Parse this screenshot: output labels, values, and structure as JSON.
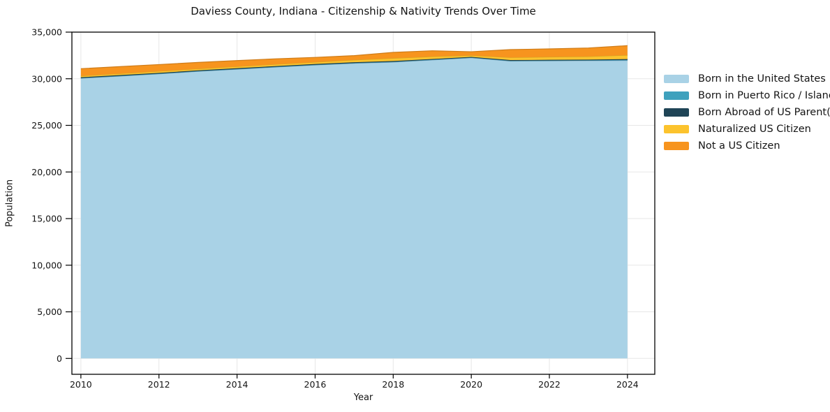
{
  "chart_data": {
    "type": "area",
    "stacked": true,
    "title": "Daviess County, Indiana - Citizenship & Nativity Trends Over Time",
    "xlabel": "Year",
    "ylabel": "Population",
    "grid": true,
    "legend_position": "right",
    "x": [
      2010,
      2011,
      2012,
      2013,
      2014,
      2015,
      2016,
      2017,
      2018,
      2019,
      2020,
      2021,
      2022,
      2023,
      2024
    ],
    "series": [
      {
        "name": "Born in the United States",
        "color": "#a9d2e6",
        "values": [
          30050,
          30280,
          30520,
          30790,
          31020,
          31250,
          31470,
          31650,
          31780,
          32010,
          32250,
          31890,
          31920,
          31940,
          31960
        ]
      },
      {
        "name": "Born in Puerto Rico / Islands",
        "color": "#3fa1bd",
        "values": [
          30,
          30,
          30,
          30,
          30,
          30,
          30,
          40,
          40,
          40,
          30,
          40,
          40,
          40,
          60
        ]
      },
      {
        "name": "Born Abroad of US Parent(s)",
        "color": "#1f4456",
        "values": [
          80,
          80,
          80,
          80,
          80,
          80,
          80,
          80,
          80,
          70,
          60,
          70,
          70,
          70,
          90
        ]
      },
      {
        "name": "Naturalized US Citizen",
        "color": "#fcc32d",
        "values": [
          150,
          160,
          170,
          170,
          180,
          190,
          200,
          250,
          300,
          260,
          160,
          280,
          310,
          340,
          420
        ]
      },
      {
        "name": "Not a US Citizen",
        "color": "#f7941e",
        "values": [
          770,
          750,
          720,
          680,
          640,
          590,
          510,
          460,
          630,
          620,
          400,
          850,
          860,
          910,
          1020
        ]
      }
    ],
    "xticks": [
      2010,
      2012,
      2014,
      2016,
      2018,
      2020,
      2022,
      2024
    ],
    "xtick_labels": [
      "2010",
      "2012",
      "2014",
      "2016",
      "2018",
      "2020",
      "2022",
      "2024"
    ],
    "yticks": [
      0,
      5000,
      10000,
      15000,
      20000,
      25000,
      30000,
      35000
    ],
    "ytick_labels": [
      "0",
      "5,000",
      "10,000",
      "15,000",
      "20,000",
      "25,000",
      "30,000",
      "35,000"
    ],
    "xlim": [
      2009.77,
      2024.7
    ],
    "ylim": [
      -1700,
      35000
    ],
    "grid_color": "#e7e7e7",
    "frame_color": "#000000",
    "background": "#ffffff"
  }
}
